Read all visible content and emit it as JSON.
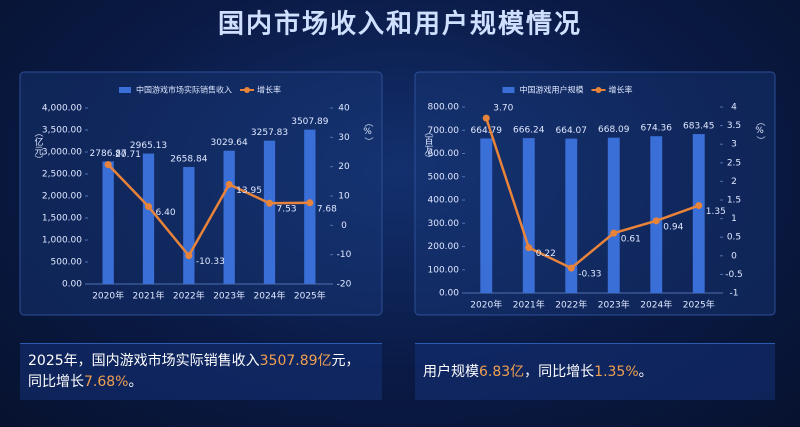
{
  "title": "国内市场收入和用户规模情况",
  "chart_data": [
    {
      "type": "combo",
      "ylabel": "（亿元）",
      "y2label": "（%）",
      "categories": [
        "2020年",
        "2021年",
        "2022年",
        "2023年",
        "2024年",
        "2025年"
      ],
      "series": [
        {
          "name": "中国游戏市场实际销售收入",
          "type": "bar",
          "color": "#3a6fd8",
          "values": [
            2786.87,
            2965.13,
            2658.84,
            3029.64,
            3257.83,
            3507.89
          ]
        },
        {
          "name": "增长率",
          "type": "line",
          "axis": "y2",
          "color": "#e8833a",
          "values": [
            20.71,
            6.4,
            -10.33,
            13.95,
            7.53,
            7.68
          ],
          "value_labels": [
            "20.71",
            "6.40",
            "-10.33",
            "13.95",
            "7.53",
            "7.68"
          ]
        }
      ],
      "ylim": [
        0,
        4000
      ],
      "yticks": [
        {
          "value": 0,
          "label": "0.00"
        },
        {
          "value": 500,
          "label": "500.00"
        },
        {
          "value": 1000,
          "label": "1,000.00"
        },
        {
          "value": 1500,
          "label": "1,500.00"
        },
        {
          "value": 2000,
          "label": "2,000.00"
        },
        {
          "value": 2500,
          "label": "2,500.00"
        },
        {
          "value": 3000,
          "label": "3,000.00"
        },
        {
          "value": 3500,
          "label": "3,500.00"
        },
        {
          "value": 4000,
          "label": "4,000.00"
        }
      ],
      "y2lim": [
        -20,
        40
      ],
      "y2ticks": [
        -20,
        -10,
        0,
        10,
        20,
        30,
        40
      ]
    },
    {
      "type": "combo",
      "ylabel": "（百万）",
      "y2label": "（%）",
      "categories": [
        "2020年",
        "2021年",
        "2022年",
        "2023年",
        "2024年",
        "2025年"
      ],
      "series": [
        {
          "name": "中国游戏用户规模",
          "type": "bar",
          "color": "#3a6fd8",
          "values": [
            664.79,
            666.24,
            664.07,
            668.09,
            674.36,
            683.45
          ]
        },
        {
          "name": "增长率",
          "type": "line",
          "axis": "y2",
          "color": "#e8833a",
          "values": [
            3.7,
            0.22,
            -0.33,
            0.61,
            0.94,
            1.35
          ],
          "value_labels": [
            "3.70",
            "0.22",
            "-0.33",
            "0.61",
            "0.94",
            "1.35"
          ]
        }
      ],
      "ylim": [
        0,
        800
      ],
      "yticks": [
        {
          "value": 0,
          "label": "0.00"
        },
        {
          "value": 100,
          "label": "100.00"
        },
        {
          "value": 200,
          "label": "200.00"
        },
        {
          "value": 300,
          "label": "300.00"
        },
        {
          "value": 400,
          "label": "400.00"
        },
        {
          "value": 500,
          "label": "500.00"
        },
        {
          "value": 600,
          "label": "600.00"
        },
        {
          "value": 700,
          "label": "700.00"
        },
        {
          "value": 800,
          "label": "800.00"
        }
      ],
      "y2lim": [
        -1,
        4
      ],
      "y2ticks": [
        -1,
        -0.5,
        0,
        0.5,
        1,
        1.5,
        2,
        2.5,
        3,
        3.5,
        4
      ]
    }
  ],
  "captions": [
    {
      "segments": [
        {
          "text": "2025年，国内游戏市场实际销售收入",
          "highlight": false
        },
        {
          "text": "3507.89亿",
          "highlight": true
        },
        {
          "text": "元，同比增长",
          "highlight": false
        },
        {
          "text": "7.68%",
          "highlight": true
        },
        {
          "text": "。",
          "highlight": false
        }
      ]
    },
    {
      "segments": [
        {
          "text": "用户规模",
          "highlight": false
        },
        {
          "text": "6.83亿",
          "highlight": true
        },
        {
          "text": "，同比增长",
          "highlight": false
        },
        {
          "text": "1.35%",
          "highlight": true
        },
        {
          "text": "。",
          "highlight": false
        }
      ]
    }
  ]
}
